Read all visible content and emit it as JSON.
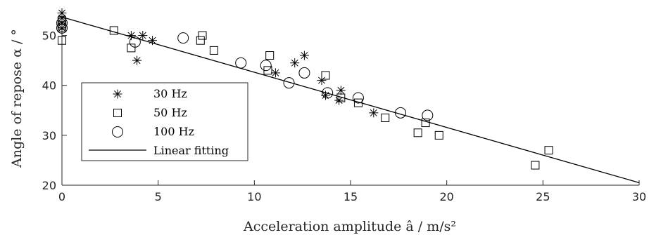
{
  "chart_data": {
    "type": "scatter",
    "xlabel": "Acceleration amplitude â / m/s²",
    "ylabel": "Angle of repose α / °",
    "xlim": [
      0,
      30
    ],
    "ylim": [
      20,
      55
    ],
    "xticks": [
      "0",
      "5",
      "10",
      "15",
      "20",
      "25",
      "30"
    ],
    "yticks": [
      "20",
      "30",
      "40",
      "50"
    ],
    "grid": false,
    "legend_placement": "lower-left",
    "legend": [
      "30 Hz",
      "50 Hz",
      "100 Hz",
      "Linear fitting"
    ],
    "series": [
      {
        "name": "30 Hz",
        "marker": "asterisk",
        "x": [
          0,
          0,
          0,
          0,
          3.6,
          3.9,
          4.2,
          4.7,
          11.1,
          12.1,
          12.6,
          13.5,
          13.7,
          14.4,
          14.5,
          16.2
        ],
        "y": [
          54.5,
          53.5,
          52.5,
          51.5,
          50,
          45,
          50,
          49,
          42.5,
          44.5,
          46,
          41,
          38,
          37,
          39,
          34.5
        ]
      },
      {
        "name": "50 Hz",
        "marker": "square",
        "x": [
          0,
          0,
          0,
          0,
          2.7,
          3.6,
          7.2,
          7.3,
          7.9,
          10.7,
          10.8,
          13.7,
          14.5,
          15.4,
          16.8,
          18.5,
          18.9,
          19.6,
          24.6,
          25.3
        ],
        "y": [
          53,
          51.5,
          52,
          49,
          51,
          47.5,
          49,
          50,
          47,
          43,
          46,
          42,
          37.5,
          36.5,
          33.5,
          30.5,
          32.5,
          30,
          24,
          27
        ]
      },
      {
        "name": "100 Hz",
        "marker": "circle",
        "x": [
          0,
          0,
          3.8,
          6.3,
          9.3,
          10.6,
          11.8,
          12.6,
          13.8,
          15.4,
          17.6,
          19
        ],
        "y": [
          52.5,
          51.5,
          48.7,
          49.5,
          44.5,
          44,
          40.5,
          42.5,
          38.5,
          37.5,
          34.5,
          34
        ]
      },
      {
        "name": "Linear fitting",
        "marker": "line",
        "x": [
          0,
          30
        ],
        "y": [
          53.7,
          20.5
        ]
      }
    ]
  }
}
